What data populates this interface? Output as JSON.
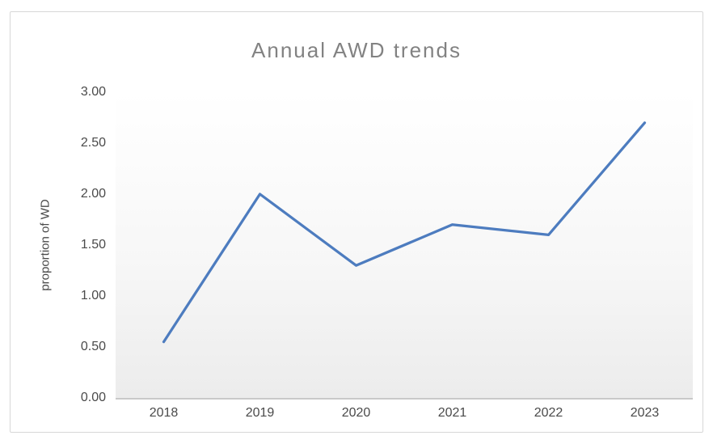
{
  "chart": {
    "colors": {
      "line": "#4d7cbf",
      "title_text": "#828282",
      "tick_text": "#4a4a4a",
      "axis_line": "#c9c9c9",
      "plot_fill_top": "#ffffff",
      "plot_fill_bottom": "#ececec",
      "frame_border": "#d7d7d7"
    }
  },
  "chart_data": {
    "type": "line",
    "title": "Annual AWD trends",
    "xlabel": "",
    "ylabel": "proportion of WD",
    "categories": [
      "2018",
      "2019",
      "2020",
      "2021",
      "2022",
      "2023"
    ],
    "values": [
      0.55,
      2.0,
      1.3,
      1.7,
      1.6,
      2.7
    ],
    "series": [
      {
        "name": "proportion of WD",
        "values": [
          0.55,
          2.0,
          1.3,
          1.7,
          1.6,
          2.7
        ]
      }
    ],
    "ylim": [
      0,
      3
    ],
    "ytick_step": 0.5,
    "ytick_labels": [
      "0.00",
      "0.50",
      "1.00",
      "1.50",
      "2.00",
      "2.50",
      "3.00"
    ],
    "grid": false,
    "legend": false
  }
}
